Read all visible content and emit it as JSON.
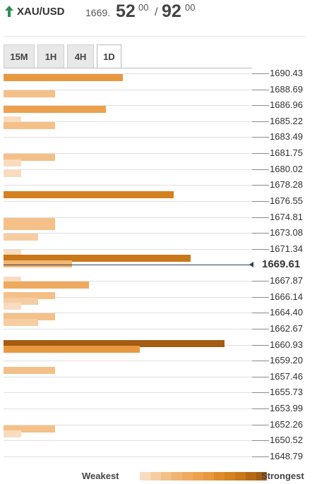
{
  "header": {
    "symbol": "XAU/USD",
    "trend": "up-arrow-icon",
    "bid_prefix": "1669.",
    "bid_big": "52",
    "bid_sup": "00",
    "separator": "/",
    "ask_big": "92",
    "ask_sup": "00"
  },
  "tabs": [
    {
      "label": "15M",
      "active": false
    },
    {
      "label": "1H",
      "active": false
    },
    {
      "label": "4H",
      "active": false
    },
    {
      "label": "1D",
      "active": true
    }
  ],
  "chart_data": {
    "type": "bar",
    "title": "",
    "current_price": "1669.61",
    "levels": [
      "1690.43",
      "1688.69",
      "1686.96",
      "1685.22",
      "1683.49",
      "1681.75",
      "1680.02",
      "1678.28",
      "1676.55",
      "1674.81",
      "1673.08",
      "1671.34",
      "1667.87",
      "1666.14",
      "1664.40",
      "1662.67",
      "1660.93",
      "1659.20",
      "1657.46",
      "1655.73",
      "1653.99",
      "1652.26",
      "1650.52",
      "1648.79"
    ],
    "bars": [
      {
        "upper_level": 1690.43,
        "strength": 7
      },
      {
        "upper_level": 1688.69,
        "strength": 3
      },
      {
        "upper_level": 1686.96,
        "strength": 6
      },
      {
        "upper_level": 1685.79,
        "strength": 1
      },
      {
        "upper_level": 1685.22,
        "strength": 3
      },
      {
        "upper_level": 1681.75,
        "strength": 3
      },
      {
        "upper_level": 1681.17,
        "strength": 1
      },
      {
        "upper_level": 1680.02,
        "strength": 1
      },
      {
        "upper_level": 1677.7,
        "strength": 10
      },
      {
        "upper_level": 1674.81,
        "strength": 3
      },
      {
        "upper_level": 1674.23,
        "strength": 3
      },
      {
        "upper_level": 1673.08,
        "strength": 2
      },
      {
        "upper_level": 1671.34,
        "strength": 1
      },
      {
        "upper_level": 1670.76,
        "strength": 11
      },
      {
        "upper_level": 1670.19,
        "strength": 4
      },
      {
        "upper_level": 1668.45,
        "strength": 1
      },
      {
        "upper_level": 1667.87,
        "strength": 5
      },
      {
        "upper_level": 1666.72,
        "strength": 3
      },
      {
        "upper_level": 1666.14,
        "strength": 2
      },
      {
        "upper_level": 1665.56,
        "strength": 1
      },
      {
        "upper_level": 1664.4,
        "strength": 3
      },
      {
        "upper_level": 1663.83,
        "strength": 2
      },
      {
        "upper_level": 1661.51,
        "strength": 13
      },
      {
        "upper_level": 1660.93,
        "strength": 8
      },
      {
        "upper_level": 1658.62,
        "strength": 3
      },
      {
        "upper_level": 1652.26,
        "strength": 3
      },
      {
        "upper_level": 1651.68,
        "strength": 1
      }
    ]
  },
  "legend": {
    "weakest_label": "Weakest",
    "strongest_label": "Strongest",
    "colors": [
      "#f9dcc0",
      "#f6cda3",
      "#f4c088",
      "#f1b572",
      "#eeaa5e",
      "#eca14f",
      "#e99840",
      "#e08c2c",
      "#d4811f",
      "#c87719",
      "#b76a15",
      "#a35c12"
    ]
  }
}
